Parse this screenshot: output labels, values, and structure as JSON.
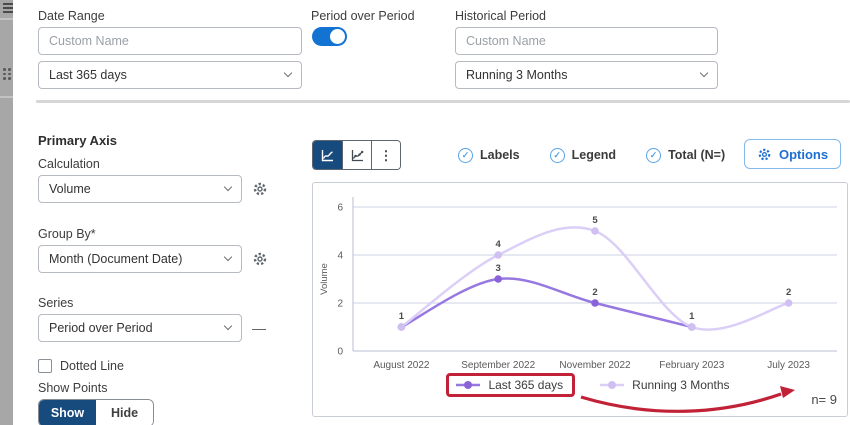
{
  "icons": {
    "check": "✓",
    "kebab": "⋮",
    "minus": "—"
  },
  "top_bar": {
    "date_range": {
      "label": "Date Range",
      "custom_name_placeholder": "Custom Name",
      "selected_option": "Last 365 days"
    },
    "period_over_period": {
      "label": "Period over Period",
      "enabled": true
    },
    "historical_period": {
      "label": "Historical Period",
      "custom_name_placeholder": "Custom Name",
      "selected_option": "Running 3 Months"
    }
  },
  "primary_axis": {
    "section_title": "Primary Axis",
    "calculation": {
      "label": "Calculation",
      "selected_option": "Volume"
    },
    "group_by": {
      "label": "Group By*",
      "selected_option": "Month (Document Date)"
    },
    "series": {
      "label": "Series",
      "selected_option": "Period over Period"
    },
    "dotted_line": {
      "label": "Dotted Line",
      "checked": false
    },
    "show_points": {
      "label": "Show Points",
      "show_label": "Show",
      "hide_label": "Hide",
      "selected": "Show"
    }
  },
  "chart_toolbar": {
    "labels_toggle": "Labels",
    "legend_toggle": "Legend",
    "total_toggle": "Total (N=)",
    "options_button": "Options"
  },
  "chart_data": {
    "type": "line",
    "title": "",
    "ylabel": "Volume",
    "xlabel": "",
    "categories": [
      "August 2022",
      "September 2022",
      "November 2022",
      "February 2023",
      "July 2023"
    ],
    "series": [
      {
        "name": "Last 365 days",
        "values": [
          1,
          3,
          2,
          1,
          null
        ],
        "line_color": "#9678e0",
        "marker_color": "#8a63d9"
      },
      {
        "name": "Running 3 Months",
        "values": [
          1,
          4,
          5,
          1,
          2
        ],
        "line_color": "#dbcff7",
        "marker_color": "#cfc0f1"
      }
    ],
    "ylim": [
      0,
      6
    ],
    "yticks": [
      0,
      2,
      4,
      6
    ],
    "grid": true,
    "smooth": true,
    "point_labels": true,
    "legend_position": "bottom"
  },
  "annotation": {
    "highlight_color": "#c22237",
    "n_text": "n= 9"
  },
  "colors": {
    "accent_blue": "#1273d2",
    "navy": "#174a7d",
    "check_blue": "#57a3e8",
    "options_blue": "#1f6fd1",
    "red_annotation": "#c22237"
  }
}
